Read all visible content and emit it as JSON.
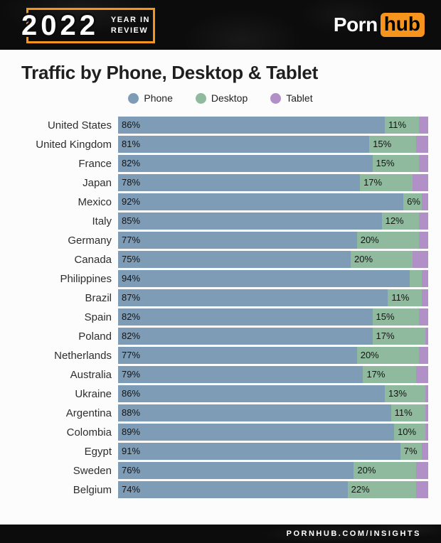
{
  "header": {
    "year_badge": {
      "year": "2022",
      "line1": "YEAR IN",
      "line2": "REVIEW"
    },
    "brand": {
      "porn": "Porn",
      "hub": "hub"
    }
  },
  "page": {
    "title": "Traffic by Phone, Desktop & Tablet"
  },
  "legend": [
    {
      "label": "Phone",
      "color": "#7e9cb5"
    },
    {
      "label": "Desktop",
      "color": "#8fba9d"
    },
    {
      "label": "Tablet",
      "color": "#b18fc7"
    }
  ],
  "chart_data": {
    "type": "bar",
    "stacked": true,
    "orientation": "horizontal",
    "unit": "percent",
    "title": "Traffic by Phone, Desktop & Tablet",
    "xlim": [
      0,
      100
    ],
    "categories": [
      "United States",
      "United Kingdom",
      "France",
      "Japan",
      "Mexico",
      "Italy",
      "Germany",
      "Canada",
      "Philippines",
      "Brazil",
      "Spain",
      "Poland",
      "Netherlands",
      "Australia",
      "Ukraine",
      "Argentina",
      "Colombia",
      "Egypt",
      "Sweden",
      "Belgium"
    ],
    "series": [
      {
        "name": "Phone",
        "color": "#7e9cb5",
        "values": [
          86,
          81,
          82,
          78,
          92,
          85,
          77,
          75,
          94,
          87,
          82,
          82,
          77,
          79,
          86,
          88,
          89,
          91,
          76,
          74
        ],
        "labels": [
          "86%",
          "81%",
          "82%",
          "78%",
          "92%",
          "85%",
          "77%",
          "75%",
          "94%",
          "87%",
          "82%",
          "82%",
          "77%",
          "79%",
          "86%",
          "88%",
          "89%",
          "91%",
          "76%",
          "74%"
        ]
      },
      {
        "name": "Desktop",
        "color": "#8fba9d",
        "values": [
          11,
          15,
          15,
          17,
          6,
          12,
          20,
          20,
          4,
          11,
          15,
          17,
          20,
          17,
          13,
          11,
          10,
          7,
          20,
          22
        ],
        "labels": [
          "11%",
          "15%",
          "15%",
          "17%",
          "6%",
          "12%",
          "20%",
          "20%",
          "",
          "11%",
          "15%",
          "17%",
          "20%",
          "17%",
          "13%",
          "11%",
          "10%",
          "7%",
          "20%",
          "22%"
        ]
      },
      {
        "name": "Tablet",
        "color": "#b18fc7",
        "values": [
          3,
          4,
          3,
          5,
          2,
          3,
          3,
          5,
          2,
          2,
          3,
          1,
          3,
          4,
          1,
          1,
          1,
          2,
          4,
          4
        ],
        "labels": [
          "",
          "",
          "",
          "",
          "",
          "",
          "",
          "",
          "",
          "",
          "",
          "",
          "",
          "",
          "",
          "",
          "",
          "",
          "",
          ""
        ]
      }
    ]
  },
  "footer": {
    "text": "PORNHUB.COM/INSIGHTS"
  }
}
